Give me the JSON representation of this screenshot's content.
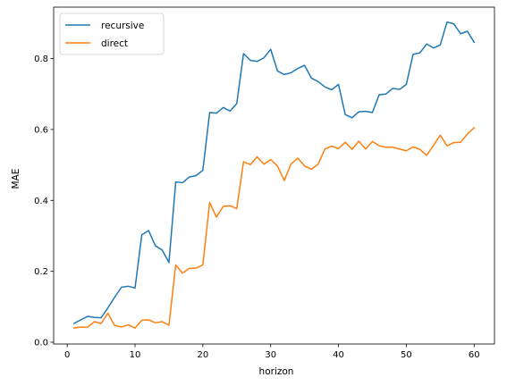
{
  "chart_data": {
    "type": "line",
    "xlabel": "horizon",
    "ylabel": "MAE",
    "xlim": [
      -2,
      63
    ],
    "ylim": [
      -0.005,
      0.945
    ],
    "xticks": [
      0,
      10,
      20,
      30,
      40,
      50,
      60
    ],
    "yticks": [
      0.0,
      0.2,
      0.4,
      0.6,
      0.8
    ],
    "ytick_labels": [
      "0.0",
      "0.2",
      "0.4",
      "0.6",
      "0.8"
    ],
    "grid": false,
    "legend_position": "top-left",
    "x": [
      1,
      2,
      3,
      4,
      5,
      6,
      7,
      8,
      9,
      10,
      11,
      12,
      13,
      14,
      15,
      16,
      17,
      18,
      19,
      20,
      21,
      22,
      23,
      24,
      25,
      26,
      27,
      28,
      29,
      30,
      31,
      32,
      33,
      34,
      35,
      36,
      37,
      38,
      39,
      40,
      41,
      42,
      43,
      44,
      45,
      46,
      47,
      48,
      49,
      50,
      51,
      52,
      53,
      54,
      55,
      56,
      57,
      58,
      59,
      60
    ],
    "series": [
      {
        "name": "recursive",
        "color": "#1f77b4",
        "values": [
          0.053,
          0.063,
          0.073,
          0.07,
          0.069,
          0.097,
          0.127,
          0.155,
          0.158,
          0.153,
          0.303,
          0.315,
          0.272,
          0.26,
          0.225,
          0.452,
          0.45,
          0.466,
          0.47,
          0.485,
          0.648,
          0.646,
          0.662,
          0.652,
          0.673,
          0.814,
          0.795,
          0.792,
          0.802,
          0.826,
          0.765,
          0.755,
          0.76,
          0.772,
          0.781,
          0.745,
          0.735,
          0.72,
          0.712,
          0.727,
          0.642,
          0.633,
          0.65,
          0.651,
          0.648,
          0.698,
          0.7,
          0.716,
          0.713,
          0.727,
          0.812,
          0.816,
          0.841,
          0.83,
          0.838,
          0.903,
          0.898,
          0.87,
          0.877,
          0.846
        ]
      },
      {
        "name": "direct",
        "color": "#ff7f0e",
        "values": [
          0.04,
          0.043,
          0.042,
          0.058,
          0.053,
          0.082,
          0.047,
          0.043,
          0.049,
          0.04,
          0.062,
          0.063,
          0.055,
          0.058,
          0.048,
          0.218,
          0.195,
          0.208,
          0.209,
          0.218,
          0.394,
          0.353,
          0.383,
          0.385,
          0.377,
          0.509,
          0.501,
          0.523,
          0.502,
          0.515,
          0.497,
          0.456,
          0.503,
          0.519,
          0.497,
          0.488,
          0.502,
          0.545,
          0.553,
          0.546,
          0.564,
          0.544,
          0.567,
          0.545,
          0.566,
          0.554,
          0.55,
          0.55,
          0.545,
          0.54,
          0.551,
          0.544,
          0.527,
          0.555,
          0.584,
          0.554,
          0.563,
          0.564,
          0.587,
          0.605
        ]
      }
    ]
  }
}
